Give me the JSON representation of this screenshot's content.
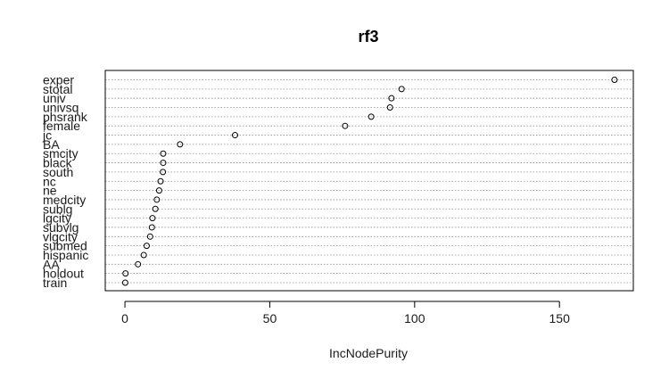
{
  "chart_data": {
    "type": "scatter",
    "title": "rf3",
    "xlabel": "IncNodePurity",
    "ylabel": "",
    "xlim": [
      -6.8,
      175.5
    ],
    "xticks": [
      0,
      50,
      100,
      150
    ],
    "grid": true,
    "categories": [
      "exper",
      "stotal",
      "univ",
      "univsq",
      "phsrank",
      "female",
      "jc",
      "BA",
      "smcity",
      "black",
      "south",
      "nc",
      "ne",
      "medcity",
      "sublg",
      "lgcity",
      "subvlg",
      "vlgcity",
      "submed",
      "hispanic",
      "AA",
      "holdout",
      "train"
    ],
    "values": [
      169,
      95.5,
      92,
      91.5,
      85,
      76,
      38,
      19,
      13.2,
      13.2,
      13.1,
      12.3,
      11.8,
      11,
      10.5,
      9.5,
      9.3,
      8.7,
      7.5,
      6.5,
      4.5,
      0.2,
      0.1
    ]
  }
}
